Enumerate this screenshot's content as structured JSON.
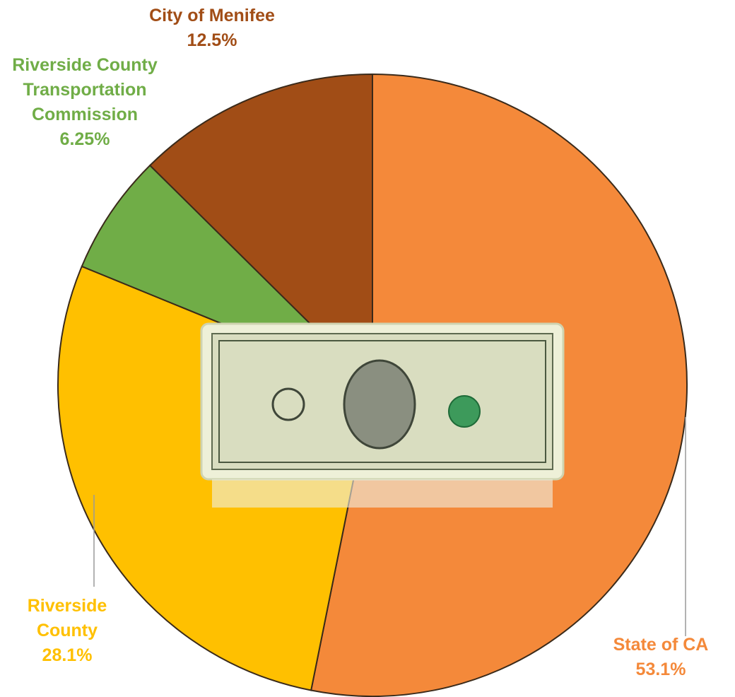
{
  "chart_data": {
    "type": "pie",
    "categories": [
      "State of CA",
      "Riverside County",
      "Riverside County Transportation Commission",
      "City of Menifee"
    ],
    "values": [
      53.1,
      28.1,
      6.25,
      12.5
    ],
    "value_labels": [
      "53.1%",
      "28.1%",
      "6.25%",
      "12.5%"
    ],
    "colors": [
      "#F4893A",
      "#FFC000",
      "#70AD47",
      "#A14D16"
    ]
  }
}
